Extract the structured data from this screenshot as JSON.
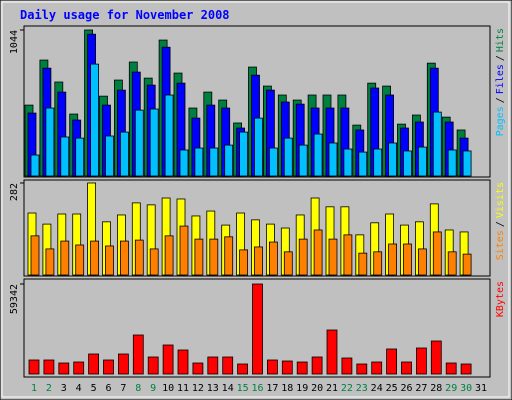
{
  "chart_data": [
    {
      "type": "bar",
      "title": "Daily usage for November 2008",
      "categories": [
        "1",
        "2",
        "3",
        "4",
        "5",
        "6",
        "7",
        "8",
        "9",
        "10",
        "11",
        "12",
        "13",
        "14",
        "15",
        "16",
        "17",
        "18",
        "19",
        "20",
        "21",
        "22",
        "23",
        "24",
        "25",
        "26",
        "27",
        "28",
        "29",
        "30",
        "31"
      ],
      "weekend_color": "#008040",
      "weekends": [
        0,
        1,
        7,
        8,
        14,
        15,
        21,
        22,
        28,
        29
      ],
      "legend_separator": "/",
      "ylim": [
        0,
        1044
      ],
      "yticks": [
        1044
      ],
      "series": [
        {
          "name": "Hits",
          "color": "#008040",
          "values": [
            507,
            829,
            672,
            443,
            1044,
            571,
            686,
            815,
            700,
            972,
            736,
            486,
            600,
            543,
            379,
            779,
            643,
            579,
            543,
            579,
            579,
            579,
            364,
            664,
            643,
            371,
            436,
            807,
            421,
            329,
            null
          ]
        },
        {
          "name": "Files",
          "color": "#0000ff",
          "values": [
            450,
            771,
            600,
            400,
            1014,
            507,
            614,
            743,
            650,
            921,
            664,
            414,
            507,
            486,
            343,
            721,
            614,
            529,
            514,
            486,
            486,
            486,
            329,
            629,
            579,
            343,
            386,
            771,
            386,
            271,
            null
          ]
        },
        {
          "name": "Pages",
          "color": "#00c0ff",
          "values": [
            150,
            486,
            279,
            271,
            800,
            286,
            314,
            471,
            479,
            579,
            186,
            200,
            200,
            221,
            314,
            414,
            200,
            271,
            221,
            300,
            236,
            193,
            171,
            193,
            236,
            179,
            207,
            457,
            186,
            179,
            null
          ]
        }
      ]
    },
    {
      "type": "bar",
      "ylim": [
        0,
        282
      ],
      "yticks": [
        282
      ],
      "series": [
        {
          "name": "Visits",
          "color": "#ffff00",
          "values": [
            190,
            156,
            187,
            187,
            282,
            163,
            184,
            221,
            215,
            236,
            233,
            181,
            196,
            153,
            190,
            169,
            156,
            144,
            184,
            236,
            209,
            209,
            123,
            160,
            187,
            153,
            163,
            218,
            138,
            132,
            null
          ]
        },
        {
          "name": "Sites",
          "color": "#ff8000",
          "values": [
            120,
            80,
            104,
            92,
            104,
            89,
            104,
            107,
            80,
            120,
            150,
            110,
            110,
            117,
            77,
            86,
            101,
            71,
            110,
            138,
            110,
            123,
            67,
            71,
            95,
            95,
            80,
            132,
            71,
            64,
            null
          ]
        }
      ]
    },
    {
      "type": "bar",
      "ylim": [
        0,
        59342
      ],
      "yticks": [
        59342
      ],
      "series": [
        {
          "name": "KBytes",
          "color": "#ff0000",
          "values": [
            9230,
            9230,
            7253,
            7912,
            13187,
            9230,
            13187,
            25715,
            11209,
            19121,
            15824,
            7253,
            11209,
            11209,
            6593,
            59342,
            9230,
            8571,
            7912,
            11209,
            29011,
            10549,
            6593,
            7912,
            16484,
            7912,
            17143,
            21758,
            7253,
            6593,
            null
          ]
        }
      ]
    }
  ]
}
